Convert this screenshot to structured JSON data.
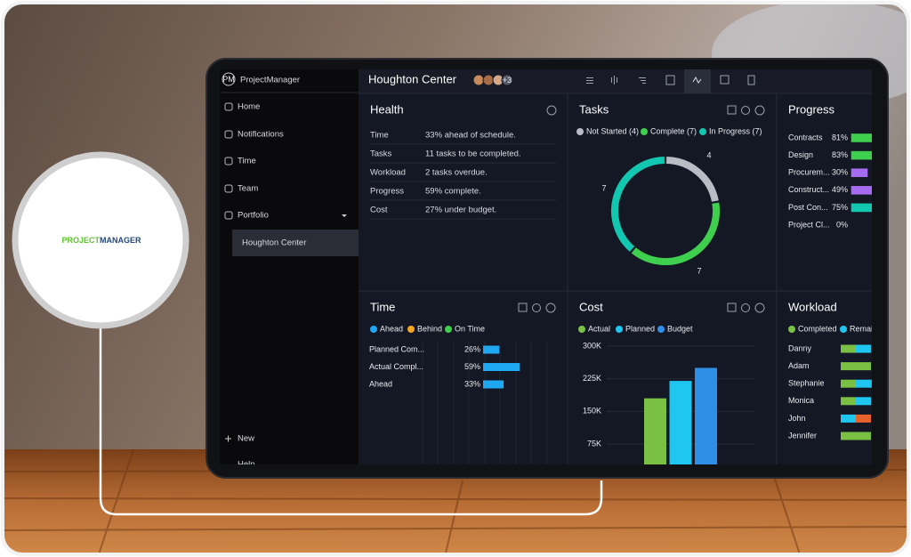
{
  "logo": {
    "brand_first": "PROJECT",
    "brand_second": "MANAGER"
  },
  "app": {
    "name": "ProjectManager",
    "badge": "PM"
  },
  "sidebar": {
    "items": [
      "Home",
      "Notifications",
      "Time",
      "Team",
      "Portfolio"
    ],
    "project": "Houghton Center",
    "footer": [
      "New",
      "Help"
    ]
  },
  "header": {
    "title": "Houghton Center",
    "more_members": "+3"
  },
  "health": {
    "title": "Health",
    "rows": [
      [
        "Time",
        "33% ahead of schedule."
      ],
      [
        "Tasks",
        "11 tasks to be completed."
      ],
      [
        "Workload",
        "2 tasks overdue."
      ],
      [
        "Progress",
        "59% complete."
      ],
      [
        "Cost",
        "27% under budget."
      ]
    ]
  },
  "chart_data": [
    {
      "type": "donut",
      "title": "Tasks",
      "categories": [
        "Not Started (4)",
        "Complete (7)",
        "In Progress (7)"
      ],
      "values": [
        4,
        7,
        7
      ],
      "colors": [
        "#b9bcc4",
        "#3fcf4f",
        "#12c7b0"
      ]
    },
    {
      "type": "hbar",
      "title": "Progress",
      "categories": [
        "Contracts",
        "Design",
        "Procurem...",
        "Construct...",
        "Post Con...",
        "Project Cl..."
      ],
      "values": [
        81,
        83,
        30,
        49,
        75,
        0
      ],
      "value_labels": [
        "81%",
        "83%",
        "30%",
        "49%",
        "75%",
        "0%"
      ],
      "colors": [
        "#3fcf4f",
        "#3fcf4f",
        "#a56bf0",
        "#a56bf0",
        "#12c7b0",
        "#cfd2d8"
      ],
      "xlim": [
        0,
        100
      ]
    },
    {
      "type": "hbar",
      "title": "Time",
      "legend": {
        "names": [
          "Ahead",
          "Behind",
          "On Time"
        ],
        "colors": [
          "#1fa8f2",
          "#f5a623",
          "#3fcf4f"
        ]
      },
      "categories": [
        "Planned Com...",
        "Actual Compl...",
        "Ahead"
      ],
      "values": [
        26,
        59,
        33
      ],
      "value_labels": [
        "26%",
        "59%",
        "33%"
      ],
      "color": "#1fa8f2",
      "xlim": [
        0,
        100
      ]
    },
    {
      "type": "bar",
      "title": "Cost",
      "series": [
        {
          "name": "Actual",
          "color": "#7ac043",
          "values": [
            180000
          ]
        },
        {
          "name": "Planned",
          "color": "#1fc6f0",
          "values": [
            220000
          ]
        },
        {
          "name": "Budget",
          "color": "#2f8fe6",
          "values": [
            250000
          ]
        }
      ],
      "ylim": [
        0,
        300000
      ],
      "yticks": [
        {
          "value": 75000,
          "label": "75K"
        },
        {
          "value": 150000,
          "label": "150K"
        },
        {
          "value": 225000,
          "label": "225K"
        },
        {
          "value": 300000,
          "label": "300K"
        }
      ],
      "grid": true
    },
    {
      "type": "stacked-hbar",
      "title": "Workload",
      "categories": [
        "Danny",
        "Adam",
        "Stephanie",
        "Monica",
        "John",
        "Jennifer"
      ],
      "series": [
        {
          "name": "Completed",
          "color": "#7ac043",
          "values": [
            1,
            2,
            1,
            1,
            0,
            2
          ]
        },
        {
          "name": "Remaining",
          "color": "#1fc6f0",
          "values": [
            1,
            0,
            1,
            1,
            1,
            0
          ]
        },
        {
          "color": "#e8622c",
          "values": [
            0,
            0,
            1,
            0,
            1,
            0
          ]
        }
      ]
    }
  ]
}
